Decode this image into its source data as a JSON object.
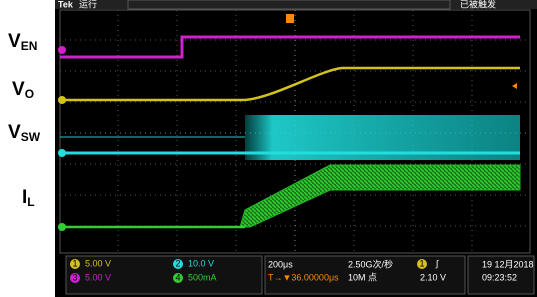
{
  "labels": [
    {
      "main": "V",
      "sub": "EN"
    },
    {
      "main": "V",
      "sub": "O"
    },
    {
      "main": "V",
      "sub": "SW"
    },
    {
      "main": "I",
      "sub": "L"
    }
  ],
  "header": {
    "brand": "Tek",
    "state": "运行",
    "trigger_state": "已被触发"
  },
  "channels": [
    {
      "id": "1",
      "scale": "5.00 V"
    },
    {
      "id": "2",
      "scale": "10.0 V"
    },
    {
      "id": "3",
      "scale": "5.00 V"
    },
    {
      "id": "4",
      "scale": "500mA"
    }
  ],
  "timebase": {
    "scale": "200μs",
    "delay": "T→▼36.00000μs",
    "rate": "2.50G次/秒",
    "points": "10M 点"
  },
  "trigger": {
    "channel": "1",
    "slope": "∫",
    "level": "2.10 V"
  },
  "clock": {
    "date": "19 12月2018",
    "time": "09:23:52"
  }
}
